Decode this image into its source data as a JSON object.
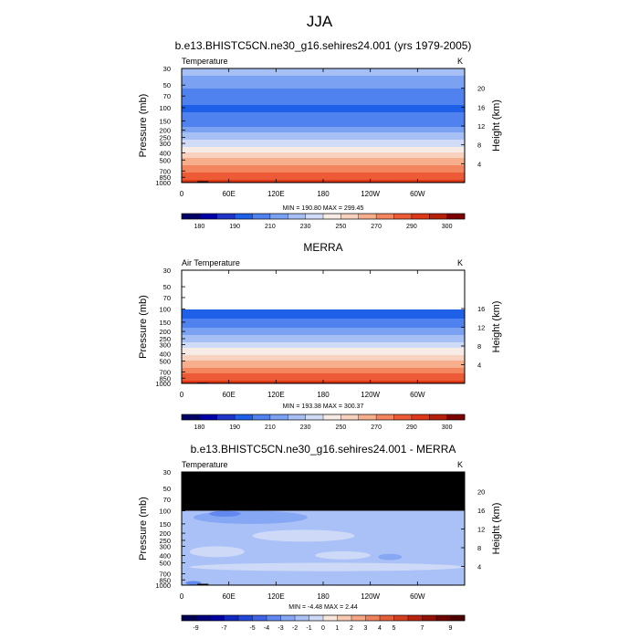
{
  "main_title": "JJA",
  "chart_data": [
    {
      "type": "heatmap",
      "title": "b.e13.BHISTC5CN.ne30_g16.sehires24.001 (yrs 1979-2005)",
      "variable_label": "Temperature",
      "units": "K",
      "xlabel": "",
      "ylabel": "Pressure (mb)",
      "y2label": "Height (km)",
      "x_tick_labels": [
        "0",
        "60E",
        "120E",
        "180",
        "120W",
        "60W"
      ],
      "x_ticks_deg": [
        0,
        60,
        120,
        180,
        240,
        300
      ],
      "xlim": [
        0,
        360
      ],
      "y_ticks": [
        30,
        50,
        70,
        100,
        150,
        200,
        250,
        300,
        400,
        500,
        700,
        850,
        1000
      ],
      "ylim": [
        30,
        1000
      ],
      "y_scale": "log",
      "height_ticks_km": [
        4,
        8,
        12,
        16,
        20
      ],
      "stats_text": "MIN = 190.80  MAX = 299.45",
      "min": 190.8,
      "max": 299.45,
      "top_data_level": 30,
      "profile": [
        [
          30,
          225
        ],
        [
          50,
          212
        ],
        [
          70,
          205
        ],
        [
          100,
          199
        ],
        [
          150,
          202
        ],
        [
          200,
          216
        ],
        [
          250,
          226
        ],
        [
          300,
          236
        ],
        [
          400,
          250
        ],
        [
          500,
          262
        ],
        [
          700,
          278
        ],
        [
          850,
          287
        ],
        [
          1000,
          296
        ]
      ],
      "levels": [
        175,
        180,
        185,
        190,
        200,
        210,
        220,
        230,
        240,
        250,
        260,
        270,
        280,
        290,
        295,
        300
      ],
      "colorbar_labels": [
        180,
        190,
        210,
        230,
        250,
        270,
        290,
        300
      ],
      "colors": [
        "#000066",
        "#0000a8",
        "#1f35c9",
        "#1f60e8",
        "#4f82ee",
        "#7aa1f2",
        "#a6c0f5",
        "#d0dcf7",
        "#f6ece5",
        "#f9d2bf",
        "#f7ae8c",
        "#f3865e",
        "#ec5b36",
        "#dd3818",
        "#b62008",
        "#7d0000"
      ],
      "topography": [
        {
          "lon0": 5,
          "lon1": 18,
          "p": 985
        },
        {
          "lon0": 20,
          "lon1": 34,
          "p": 960
        },
        {
          "lon0": 240,
          "lon1": 270,
          "p": 985
        }
      ]
    },
    {
      "type": "heatmap",
      "title": "MERRA",
      "variable_label": "Air Temperature",
      "units": "K",
      "xlabel": "",
      "ylabel": "Pressure (mb)",
      "y2label": "Height (km)",
      "x_tick_labels": [
        "0",
        "60E",
        "120E",
        "180",
        "120W",
        "60W"
      ],
      "x_ticks_deg": [
        0,
        60,
        120,
        180,
        240,
        300
      ],
      "xlim": [
        0,
        360
      ],
      "y_ticks": [
        30,
        50,
        70,
        100,
        150,
        200,
        250,
        300,
        400,
        500,
        700,
        850,
        1000
      ],
      "ylim": [
        30,
        1000
      ],
      "y_scale": "log",
      "height_ticks_km": [
        4,
        8,
        12,
        16
      ],
      "stats_text": "MIN = 193.38  MAX = 300.37",
      "min": 193.38,
      "max": 300.37,
      "top_data_level": 100,
      "profile": [
        [
          100,
          198
        ],
        [
          150,
          201
        ],
        [
          200,
          215
        ],
        [
          250,
          225
        ],
        [
          300,
          235
        ],
        [
          400,
          249
        ],
        [
          500,
          261
        ],
        [
          700,
          277
        ],
        [
          850,
          286
        ],
        [
          1000,
          297
        ]
      ],
      "levels": [
        175,
        180,
        185,
        190,
        200,
        210,
        220,
        230,
        240,
        250,
        260,
        270,
        280,
        290,
        295,
        300
      ],
      "colorbar_labels": [
        180,
        190,
        210,
        230,
        250,
        270,
        290,
        300
      ],
      "colors": [
        "#000066",
        "#0000a8",
        "#1f35c9",
        "#1f60e8",
        "#4f82ee",
        "#7aa1f2",
        "#a6c0f5",
        "#d0dcf7",
        "#f6ece5",
        "#f9d2bf",
        "#f7ae8c",
        "#f3865e",
        "#ec5b36",
        "#dd3818",
        "#b62008",
        "#7d0000"
      ],
      "topography": [
        {
          "lon0": 20,
          "lon1": 34,
          "p": 975
        }
      ]
    },
    {
      "type": "heatmap",
      "title": "b.e13.BHISTC5CN.ne30_g16.sehires24.001 - MERRA",
      "variable_label": "Temperature",
      "units": "K",
      "xlabel": "",
      "ylabel": "Pressure (mb)",
      "y2label": "Height (km)",
      "x_tick_labels": [
        "0",
        "60E",
        "120E",
        "180",
        "120W",
        "60W"
      ],
      "x_ticks_deg": [
        0,
        60,
        120,
        180,
        240,
        300
      ],
      "xlim": [
        0,
        360
      ],
      "y_ticks": [
        30,
        50,
        70,
        100,
        150,
        200,
        250,
        300,
        400,
        500,
        700,
        850,
        1000
      ],
      "ylim": [
        30,
        1000
      ],
      "y_scale": "log",
      "height_ticks_km": [
        4,
        8,
        12,
        16,
        20
      ],
      "stats_text": "MIN = -4.48  MAX =  2.44",
      "min": -4.48,
      "max": 2.44,
      "missing_above": 100,
      "background_value": -1.5,
      "patches": [
        {
          "lon0": 15,
          "lon1": 160,
          "p0": 100,
          "p1": 150,
          "v": -2.5
        },
        {
          "lon0": 35,
          "lon1": 75,
          "p0": 100,
          "p1": 120,
          "v": -3.5
        },
        {
          "lon0": 90,
          "lon1": 220,
          "p0": 180,
          "p1": 260,
          "v": -0.5
        },
        {
          "lon0": 10,
          "lon1": 80,
          "p0": 300,
          "p1": 420,
          "v": -0.5
        },
        {
          "lon0": 170,
          "lon1": 240,
          "p0": 350,
          "p1": 450,
          "v": -0.5
        },
        {
          "lon0": 10,
          "lon1": 360,
          "p0": 500,
          "p1": 650,
          "v": -0.5
        },
        {
          "lon0": 250,
          "lon1": 280,
          "p0": 380,
          "p1": 460,
          "v": -2.5
        },
        {
          "lon0": 5,
          "lon1": 25,
          "p0": 880,
          "p1": 990,
          "v": -3.5
        }
      ],
      "levels": [
        -10,
        -9,
        -8,
        -7,
        -6,
        -5,
        -4,
        -3,
        -2,
        -1,
        0,
        1,
        2,
        3,
        4,
        5,
        6,
        7,
        8,
        9,
        10
      ],
      "colorbar_labels": [
        -9,
        -7,
        -5,
        -4,
        -3,
        -2,
        -1,
        0,
        1,
        2,
        3,
        4,
        5,
        7,
        9
      ],
      "colors": [
        "#000055",
        "#00007a",
        "#00009e",
        "#1227c0",
        "#2246d8",
        "#3f64e6",
        "#6288ef",
        "#86a7f4",
        "#a9c1f6",
        "#cdd9f7",
        "#f8e6dc",
        "#f7c9b0",
        "#f4a685",
        "#ee825d",
        "#e45e3a",
        "#d33d20",
        "#b8240f",
        "#921106",
        "#6b0500",
        "#4d0000"
      ],
      "topography": [
        {
          "lon0": 5,
          "lon1": 18,
          "p": 985
        },
        {
          "lon0": 20,
          "lon1": 34,
          "p": 960
        },
        {
          "lon0": 240,
          "lon1": 270,
          "p": 985
        }
      ]
    }
  ]
}
